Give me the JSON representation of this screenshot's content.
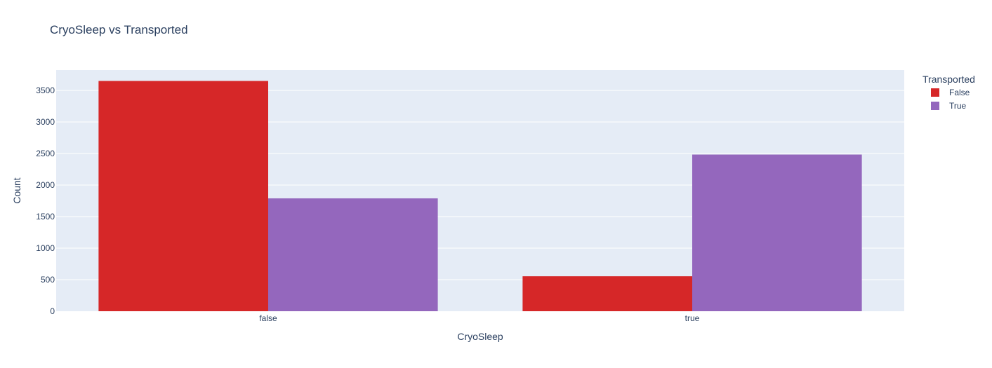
{
  "chart_data": {
    "type": "bar",
    "title": "CryoSleep vs Transported",
    "xlabel": "CryoSleep",
    "ylabel": "Count",
    "categories": [
      "false",
      "true"
    ],
    "series": [
      {
        "name": "False",
        "color": "#d62728",
        "values": [
          3650,
          554
        ]
      },
      {
        "name": "True",
        "color": "#9467bd",
        "values": [
          1789,
          2483
        ]
      }
    ],
    "ylim": [
      0,
      3822
    ],
    "yticks": [
      0,
      500,
      1000,
      1500,
      2000,
      2500,
      3000,
      3500
    ],
    "grid": true,
    "legend": {
      "title": "Transported",
      "placement": "top-right"
    },
    "plot_bg": "#e5ecf6"
  }
}
